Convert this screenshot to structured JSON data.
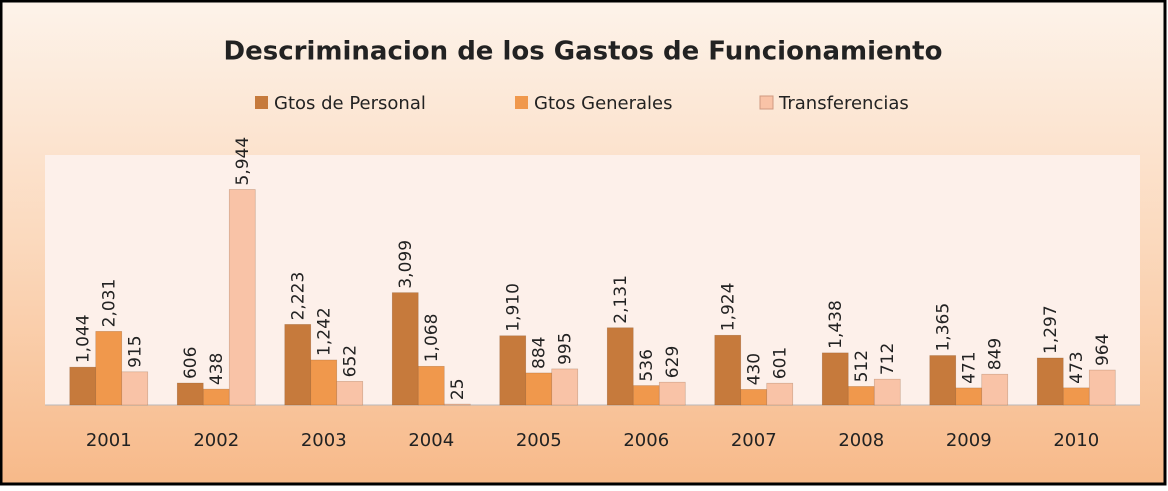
{
  "chart_data": {
    "type": "bar",
    "title": "Descriminacion de los Gastos de Funcionamiento",
    "categories": [
      "2001",
      "2002",
      "2003",
      "2004",
      "2005",
      "2006",
      "2007",
      "2008",
      "2009",
      "2010"
    ],
    "series": [
      {
        "name": "Gtos de Personal",
        "color": "#c67a3c",
        "values": [
          1044,
          606,
          2223,
          3099,
          1910,
          2131,
          1924,
          1438,
          1365,
          1297
        ],
        "value_labels": [
          "1,044",
          "606",
          "2,223",
          "3,099",
          "1,910",
          "2,131",
          "1,924",
          "1,438",
          "1,365",
          "1,297"
        ]
      },
      {
        "name": "Gtos Generales",
        "color": "#f0984c",
        "values": [
          2031,
          438,
          1242,
          1068,
          884,
          536,
          430,
          512,
          471,
          473
        ],
        "value_labels": [
          "2,031",
          "438",
          "1,242",
          "1,068",
          "884",
          "536",
          "430",
          "512",
          "471",
          "473"
        ]
      },
      {
        "name": "Transferencias",
        "color": "#f9c3a7",
        "values": [
          915,
          5944,
          652,
          25,
          995,
          629,
          601,
          712,
          849,
          964
        ],
        "value_labels": [
          "915",
          "5,944",
          "652",
          "25",
          "995",
          "629",
          "601",
          "712",
          "849",
          "964"
        ]
      }
    ],
    "legend": "top"
  }
}
